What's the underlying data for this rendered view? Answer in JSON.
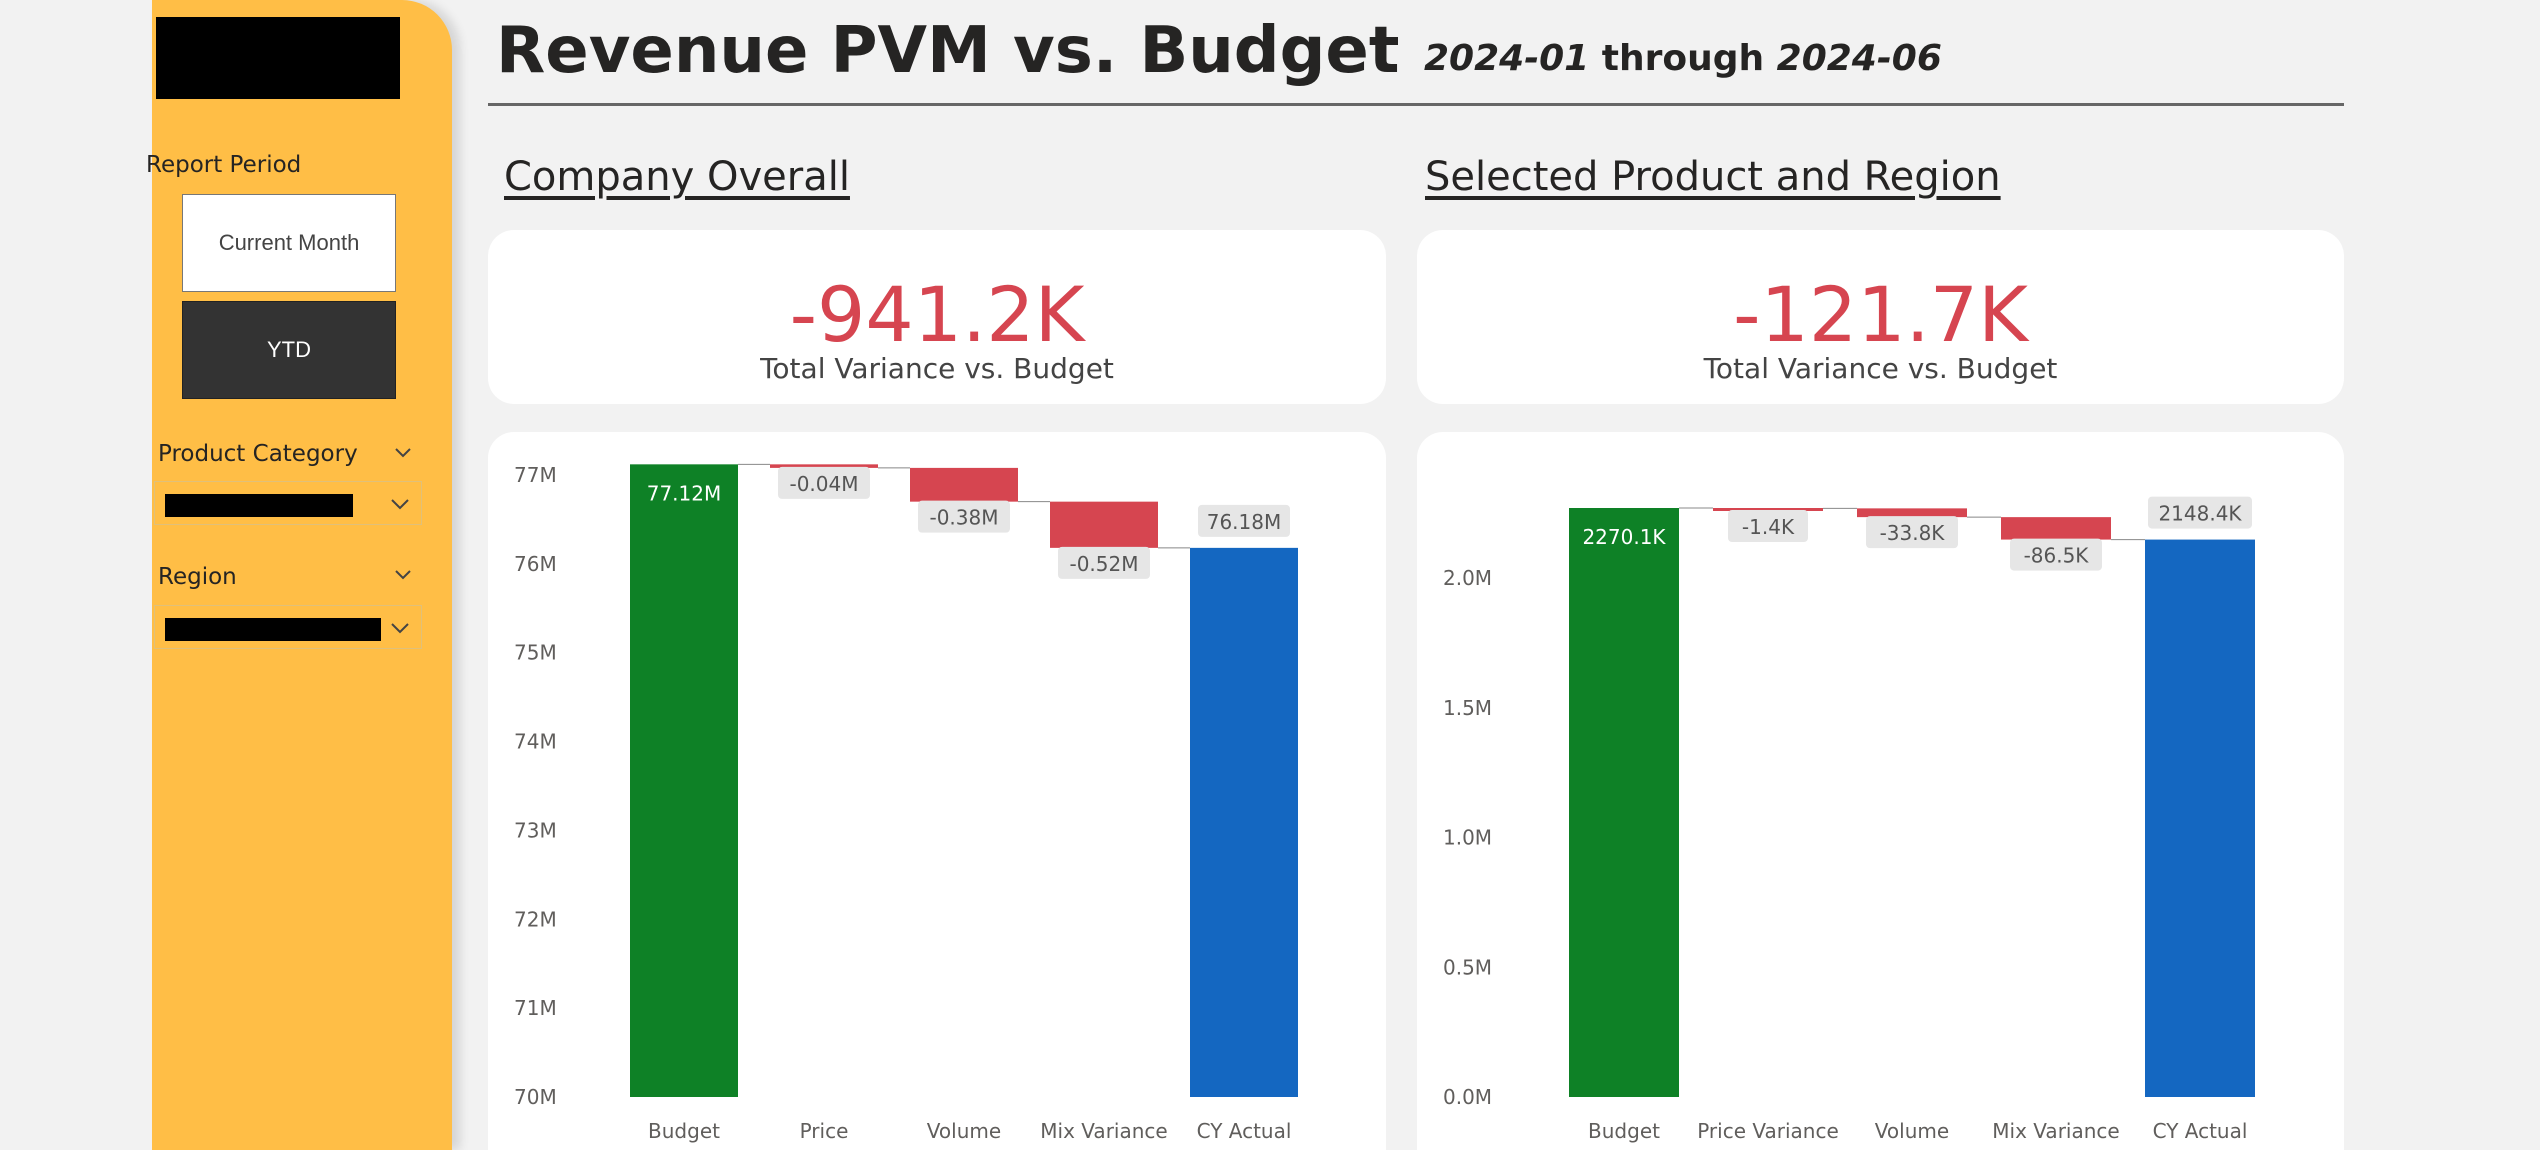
{
  "header": {
    "title": "Revenue PVM vs. Budget",
    "date_from": "2024-01",
    "date_sep": " through ",
    "date_to": "2024-06"
  },
  "sidebar": {
    "report_period_label": "Report Period",
    "period_options": [
      "Current Month",
      "YTD"
    ],
    "selected_period": "YTD",
    "product_category_label": "Product Category",
    "region_label": "Region"
  },
  "sections": {
    "left_title": "Company Overall",
    "right_title": "Selected Product and Region"
  },
  "kpis": {
    "left": {
      "value": "-941.2K",
      "label": "Total Variance vs. Budget"
    },
    "right": {
      "value": "-121.7K",
      "label": "Total Variance vs. Budget"
    }
  },
  "colors": {
    "sidebar": "#ffbe46",
    "negative": "#d64550",
    "budget": "#0e8126",
    "actual": "#1467c1"
  },
  "chart_data": [
    {
      "type": "bar",
      "subtype": "waterfall",
      "categories": [
        "Budget",
        "Price",
        "Volume",
        "Mix Variance",
        "CY Actual"
      ],
      "values": [
        77.12,
        -0.04,
        -0.38,
        -0.52,
        76.18
      ],
      "kinds": [
        "total",
        "delta",
        "delta",
        "delta",
        "total"
      ],
      "data_labels": [
        "77.12M",
        "-0.04M",
        "-0.38M",
        "-0.52M",
        "76.18M"
      ],
      "ylim": [
        70,
        77
      ],
      "yticks": [
        70,
        71,
        72,
        73,
        74,
        75,
        76,
        77
      ],
      "ytick_labels": [
        "70M",
        "71M",
        "72M",
        "73M",
        "74M",
        "75M",
        "76M",
        "77M"
      ],
      "grid": false
    },
    {
      "type": "bar",
      "subtype": "waterfall",
      "categories": [
        "Budget",
        "Price Variance",
        "Volume",
        "Mix Variance",
        "CY Actual"
      ],
      "values": [
        2270.1,
        -1.4,
        -33.8,
        -86.5,
        2148.4
      ],
      "kinds": [
        "total",
        "delta",
        "delta",
        "delta",
        "total"
      ],
      "data_labels": [
        "2270.1K",
        "-1.4K",
        "-33.8K",
        "-86.5K",
        "2148.4K"
      ],
      "ylim": [
        0,
        2270.1
      ],
      "yticks": [
        0,
        500,
        1000,
        1500,
        2000
      ],
      "ytick_labels": [
        "0.0M",
        "0.5M",
        "1.0M",
        "1.5M",
        "2.0M"
      ],
      "grid": false
    }
  ]
}
